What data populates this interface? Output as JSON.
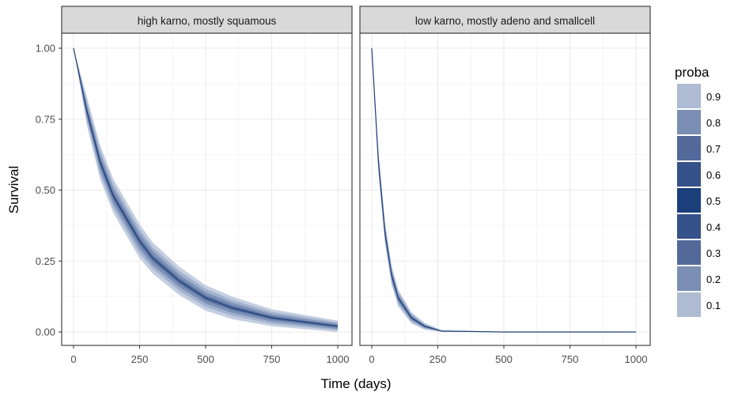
{
  "chart_data": {
    "type": "area",
    "xlabel": "Time (days)",
    "ylabel": "Survival",
    "xlim": [
      0,
      1000
    ],
    "ylim": [
      0,
      1
    ],
    "x_ticks": [
      "0",
      "250",
      "500",
      "750",
      "1000"
    ],
    "y_ticks": [
      "0.00",
      "0.25",
      "0.50",
      "0.75",
      "1.00"
    ],
    "grid": true,
    "legend": {
      "title": "proba",
      "placement": "right",
      "entries": [
        "0.9",
        "0.8",
        "0.7",
        "0.6",
        "0.5",
        "0.4",
        "0.3",
        "0.2",
        "0.1"
      ],
      "colors": [
        "#aebbd2",
        "#7b8fb4",
        "#52699a",
        "#36528a",
        "#1b3f7b",
        "#36528a",
        "#52699a",
        "#7b8fb4",
        "#aebbd2"
      ]
    },
    "band_colors": [
      "#c5cfe1",
      "#a2b2ce",
      "#7d92b8",
      "#5a72a0"
    ],
    "line_color": "#1f3f77",
    "panels": [
      {
        "title": "high karno, mostly squamous",
        "x": [
          0,
          50,
          100,
          150,
          200,
          250,
          300,
          400,
          500,
          600,
          750,
          1000
        ],
        "quantiles": {
          "0.1": [
            1,
            0.73,
            0.54,
            0.42,
            0.34,
            0.26,
            0.205,
            0.13,
            0.075,
            0.045,
            0.02,
            0.0
          ],
          "0.2": [
            1,
            0.745,
            0.558,
            0.438,
            0.358,
            0.278,
            0.222,
            0.145,
            0.088,
            0.057,
            0.029,
            0.006
          ],
          "0.3": [
            1,
            0.758,
            0.573,
            0.453,
            0.373,
            0.293,
            0.235,
            0.158,
            0.1,
            0.067,
            0.037,
            0.011
          ],
          "0.4": [
            1,
            0.77,
            0.588,
            0.468,
            0.388,
            0.308,
            0.249,
            0.17,
            0.111,
            0.077,
            0.044,
            0.016
          ],
          "0.5": [
            1,
            0.78,
            0.6,
            0.48,
            0.4,
            0.32,
            0.26,
            0.18,
            0.12,
            0.085,
            0.05,
            0.02
          ],
          "0.6": [
            1,
            0.79,
            0.612,
            0.492,
            0.412,
            0.332,
            0.271,
            0.19,
            0.129,
            0.093,
            0.056,
            0.024
          ],
          "0.7": [
            1,
            0.802,
            0.627,
            0.507,
            0.427,
            0.347,
            0.285,
            0.202,
            0.14,
            0.103,
            0.063,
            0.029
          ],
          "0.8": [
            1,
            0.815,
            0.642,
            0.522,
            0.442,
            0.362,
            0.298,
            0.215,
            0.152,
            0.113,
            0.071,
            0.034
          ],
          "0.9": [
            1,
            0.83,
            0.66,
            0.54,
            0.46,
            0.38,
            0.315,
            0.23,
            0.165,
            0.125,
            0.08,
            0.04
          ]
        }
      },
      {
        "title": "low karno, mostly adeno and smallcell",
        "x": [
          0,
          25,
          50,
          75,
          100,
          150,
          200,
          265,
          500,
          1000
        ],
        "quantiles": {
          "0.1": [
            1,
            0.56,
            0.31,
            0.165,
            0.09,
            0.03,
            0.008,
            0,
            0,
            0
          ],
          "0.2": [
            1,
            0.572,
            0.322,
            0.175,
            0.099,
            0.036,
            0.012,
            0.001,
            0,
            0
          ],
          "0.3": [
            1,
            0.582,
            0.332,
            0.184,
            0.106,
            0.041,
            0.015,
            0.002,
            0,
            0
          ],
          "0.4": [
            1,
            0.592,
            0.342,
            0.193,
            0.114,
            0.046,
            0.018,
            0.003,
            0,
            0
          ],
          "0.5": [
            1,
            0.6,
            0.35,
            0.2,
            0.12,
            0.05,
            0.02,
            0.003,
            0,
            0
          ],
          "0.6": [
            1,
            0.608,
            0.358,
            0.207,
            0.126,
            0.054,
            0.022,
            0.003,
            0,
            0
          ],
          "0.7": [
            1,
            0.618,
            0.368,
            0.216,
            0.134,
            0.059,
            0.025,
            0.004,
            0,
            0
          ],
          "0.8": [
            1,
            0.628,
            0.378,
            0.225,
            0.141,
            0.064,
            0.028,
            0.005,
            0,
            0
          ],
          "0.9": [
            1,
            0.64,
            0.39,
            0.235,
            0.15,
            0.07,
            0.032,
            0.006,
            0,
            0
          ]
        }
      }
    ]
  }
}
